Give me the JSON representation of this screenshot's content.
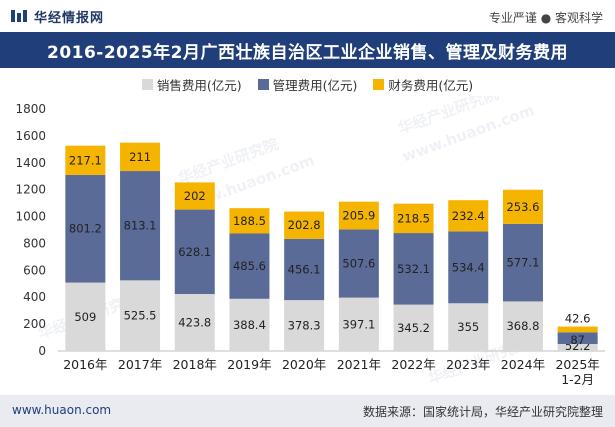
{
  "header": {
    "brand_name": "华经情报网",
    "slogan": "专业严谨 ● 客观科学",
    "logo_icon": "huajing-logo-icon"
  },
  "title": "2016-2025年2月广西壮族自治区工业企业销售、管理及财务费用",
  "footer": {
    "website": "www.huaon.com",
    "source": "数据来源：国家统计局，华经产业研究院整理"
  },
  "watermarks": [
    "华经产业研究院",
    "www.huaon.com"
  ],
  "chart_data": {
    "type": "bar",
    "stacked": true,
    "categories": [
      "2016年",
      "2017年",
      "2018年",
      "2019年",
      "2020年",
      "2021年",
      "2022年",
      "2023年",
      "2024年",
      "2025年\n1-2月"
    ],
    "series": [
      {
        "name": "销售费用(亿元)",
        "color": "#d9d9d9",
        "values": [
          509,
          525.5,
          423.8,
          388.4,
          378.3,
          397.1,
          345.2,
          355,
          368.8,
          52.2
        ]
      },
      {
        "name": "管理费用(亿元)",
        "color": "#5b6b98",
        "values": [
          801.2,
          813.1,
          628.1,
          485.6,
          456.1,
          507.6,
          532.1,
          534.4,
          577.1,
          87
        ]
      },
      {
        "name": "财务费用(亿元)",
        "color": "#f4b400",
        "values": [
          217.1,
          211,
          202,
          188.5,
          202.8,
          205.9,
          218.5,
          232.4,
          253.6,
          42.6
        ]
      }
    ],
    "ylim": [
      0,
      1800
    ],
    "yticks": [
      0,
      200,
      400,
      600,
      800,
      1000,
      1200,
      1400,
      1600,
      1800
    ],
    "legend": "top-center",
    "grid": false
  }
}
